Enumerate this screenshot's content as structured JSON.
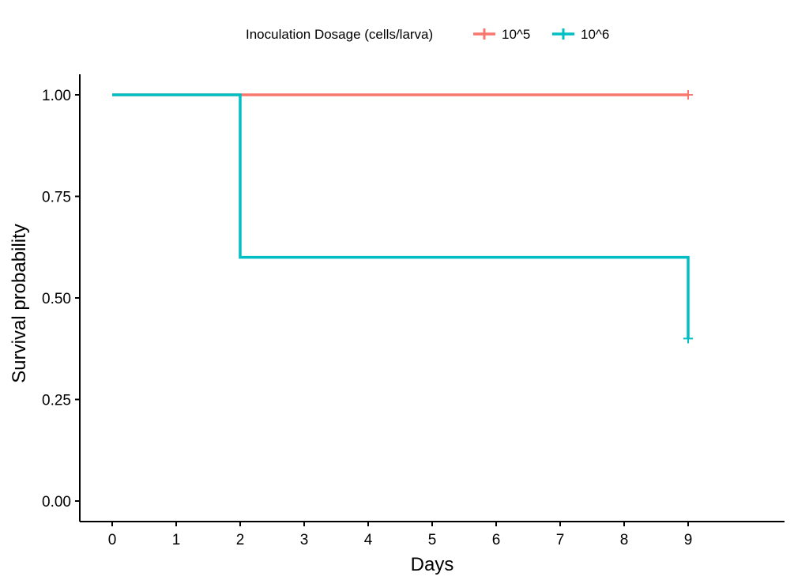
{
  "chart_data": {
    "type": "line",
    "chart_subtype": "kaplan-meier step",
    "title": "",
    "xlabel": "Days",
    "ylabel": "Survival probability",
    "xlim": [
      0,
      9
    ],
    "ylim": [
      0,
      1
    ],
    "x_ticks": [
      0,
      1,
      2,
      3,
      4,
      5,
      6,
      7,
      8,
      9
    ],
    "x_tick_labels": [
      "0",
      "1",
      "2",
      "3",
      "4",
      "5",
      "6",
      "7",
      "8",
      "9"
    ],
    "y_ticks": [
      0,
      0.25,
      0.5,
      0.75,
      1.0
    ],
    "y_tick_labels": [
      "0.00",
      "0.25",
      "0.50",
      "0.75",
      "1.00"
    ],
    "grid": false,
    "legend": {
      "title": "Inoculation Dosage (cells/larva)",
      "position": "top"
    },
    "series": [
      {
        "name": "10^5",
        "color": "#F8766D",
        "x": [
          0,
          9
        ],
        "y": [
          1.0,
          1.0
        ],
        "censor_points": [
          {
            "x": 9,
            "y": 1.0
          }
        ]
      },
      {
        "name": "10^6",
        "color": "#00BFC4",
        "x": [
          0,
          2,
          9
        ],
        "y": [
          1.0,
          0.6,
          0.4
        ],
        "censor_points": [
          {
            "x": 9,
            "y": 0.4
          }
        ]
      }
    ]
  }
}
